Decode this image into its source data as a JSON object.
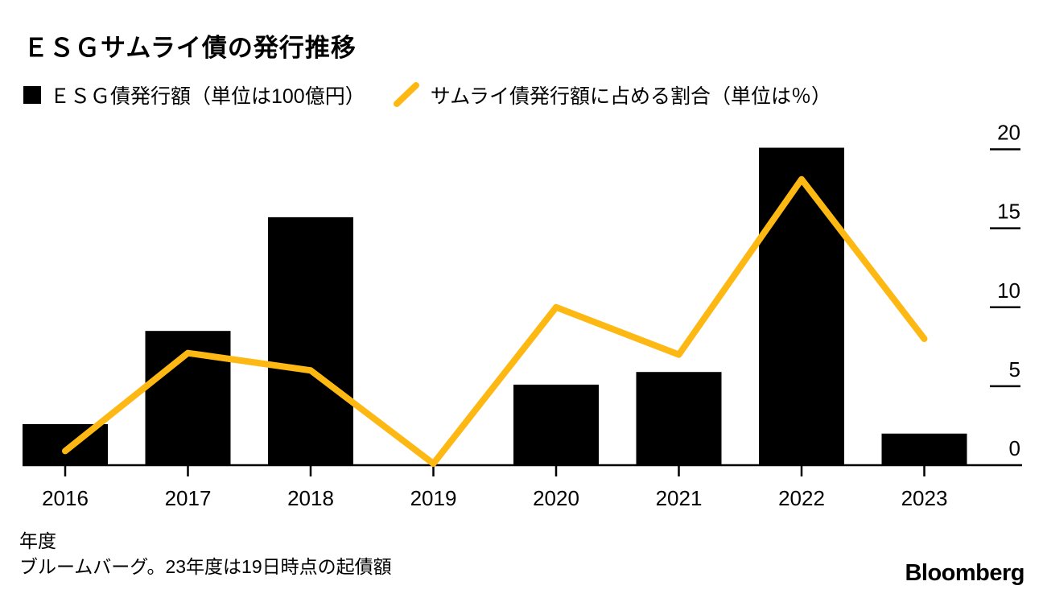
{
  "page": {
    "title": "ＥＳＧサムライ債の発行推移",
    "footer": {
      "xaxis_note": "年度",
      "source_note": "ブルームバーグ。23年度は19日時点の起債額"
    },
    "brand": "Bloomberg"
  },
  "legend": {
    "bar_label": "ＥＳＧ債発行額（単位は100億円）",
    "line_label": "サムライ債発行額に占める割合（単位は％）"
  },
  "colors": {
    "bar": "#000000",
    "line": "#FDB813",
    "axis": "#000000",
    "text": "#000000",
    "background": "#FFFFFF"
  },
  "chart_data": {
    "type": "bar+line",
    "title": "ＥＳＧサムライ債の発行推移",
    "categories": [
      "2016",
      "2017",
      "2018",
      "2019",
      "2020",
      "2021",
      "2022",
      "2023"
    ],
    "series": [
      {
        "name": "ＥＳＧ債発行額（単位は100億円）",
        "type": "bar",
        "color": "#000000",
        "values": [
          2.6,
          8.5,
          15.7,
          0,
          5.1,
          5.9,
          20.1,
          2.0
        ]
      },
      {
        "name": "サムライ債発行額に占める割合（単位は％）",
        "type": "line",
        "color": "#FDB813",
        "values": [
          0.9,
          7.1,
          6.0,
          0.1,
          10.0,
          7.0,
          18.1,
          8.0
        ]
      }
    ],
    "xlabel": "年度",
    "ylabel_right": "％",
    "ylim": [
      0,
      20
    ],
    "yticks": [
      0,
      5,
      10,
      15,
      20
    ],
    "y_axis_side": "right",
    "grid": false,
    "legend_position": "top"
  }
}
